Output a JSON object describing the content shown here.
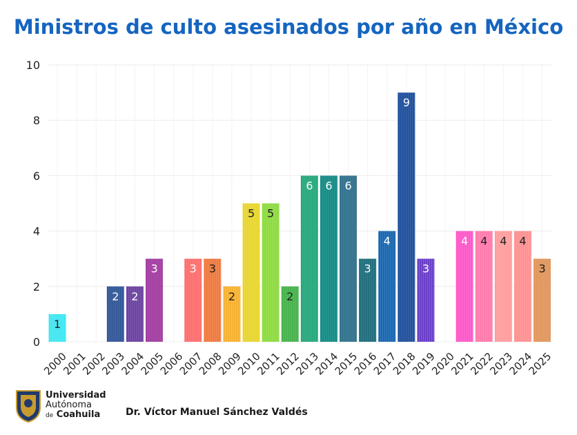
{
  "title": "Ministros de culto asesinados por año en México",
  "footer": {
    "university_line1": "Universidad",
    "university_line2": "Autónoma",
    "university_line3_prefix": "de",
    "university_line3": "Coahuila",
    "author": "Dr. Víctor Manuel Sánchez Valdés"
  },
  "chart_data": {
    "type": "bar",
    "title": "Ministros de culto asesinados por año en México",
    "xlabel": "",
    "ylabel": "",
    "ylim": [
      0,
      10
    ],
    "yticks": [
      0,
      2,
      4,
      6,
      8,
      10
    ],
    "grid": true,
    "categories": [
      "2000",
      "2001",
      "2002",
      "2003",
      "2004",
      "2005",
      "2006",
      "2007",
      "2008",
      "2009",
      "2010",
      "2011",
      "2012",
      "2013",
      "2014",
      "2015",
      "2016",
      "2017",
      "2018",
      "2019",
      "2020",
      "2021",
      "2022",
      "2023",
      "2024",
      "2025"
    ],
    "values": [
      1,
      0,
      0,
      2,
      2,
      3,
      0,
      3,
      3,
      2,
      5,
      5,
      2,
      6,
      6,
      6,
      3,
      4,
      9,
      3,
      0,
      4,
      4,
      4,
      4,
      3
    ],
    "colors": [
      "#3ee6f2",
      "#cccccc",
      "#cccccc",
      "#2f5597",
      "#6a3fa0",
      "#a13aa0",
      "#cccccc",
      "#ff6b6b",
      "#f0783c",
      "#f5b232",
      "#e8d62a",
      "#8bdc3a",
      "#45b04a",
      "#22a67a",
      "#0f8a84",
      "#2e6f8a",
      "#1d6b7a",
      "#1565b0",
      "#1c4e9c",
      "#6a3fc8",
      "#cccccc",
      "#ff55c8",
      "#ff7aaa",
      "#ff9c9c",
      "#ff8f8f",
      "#e0955a"
    ],
    "label_colors": [
      "#222222",
      "#222222",
      "#222222",
      "#ffffff",
      "#ffffff",
      "#ffffff",
      "#222222",
      "#ffffff",
      "#222222",
      "#222222",
      "#222222",
      "#222222",
      "#222222",
      "#ffffff",
      "#ffffff",
      "#ffffff",
      "#ffffff",
      "#ffffff",
      "#ffffff",
      "#ffffff",
      "#222222",
      "#ffffff",
      "#222222",
      "#222222",
      "#222222",
      "#222222"
    ]
  }
}
